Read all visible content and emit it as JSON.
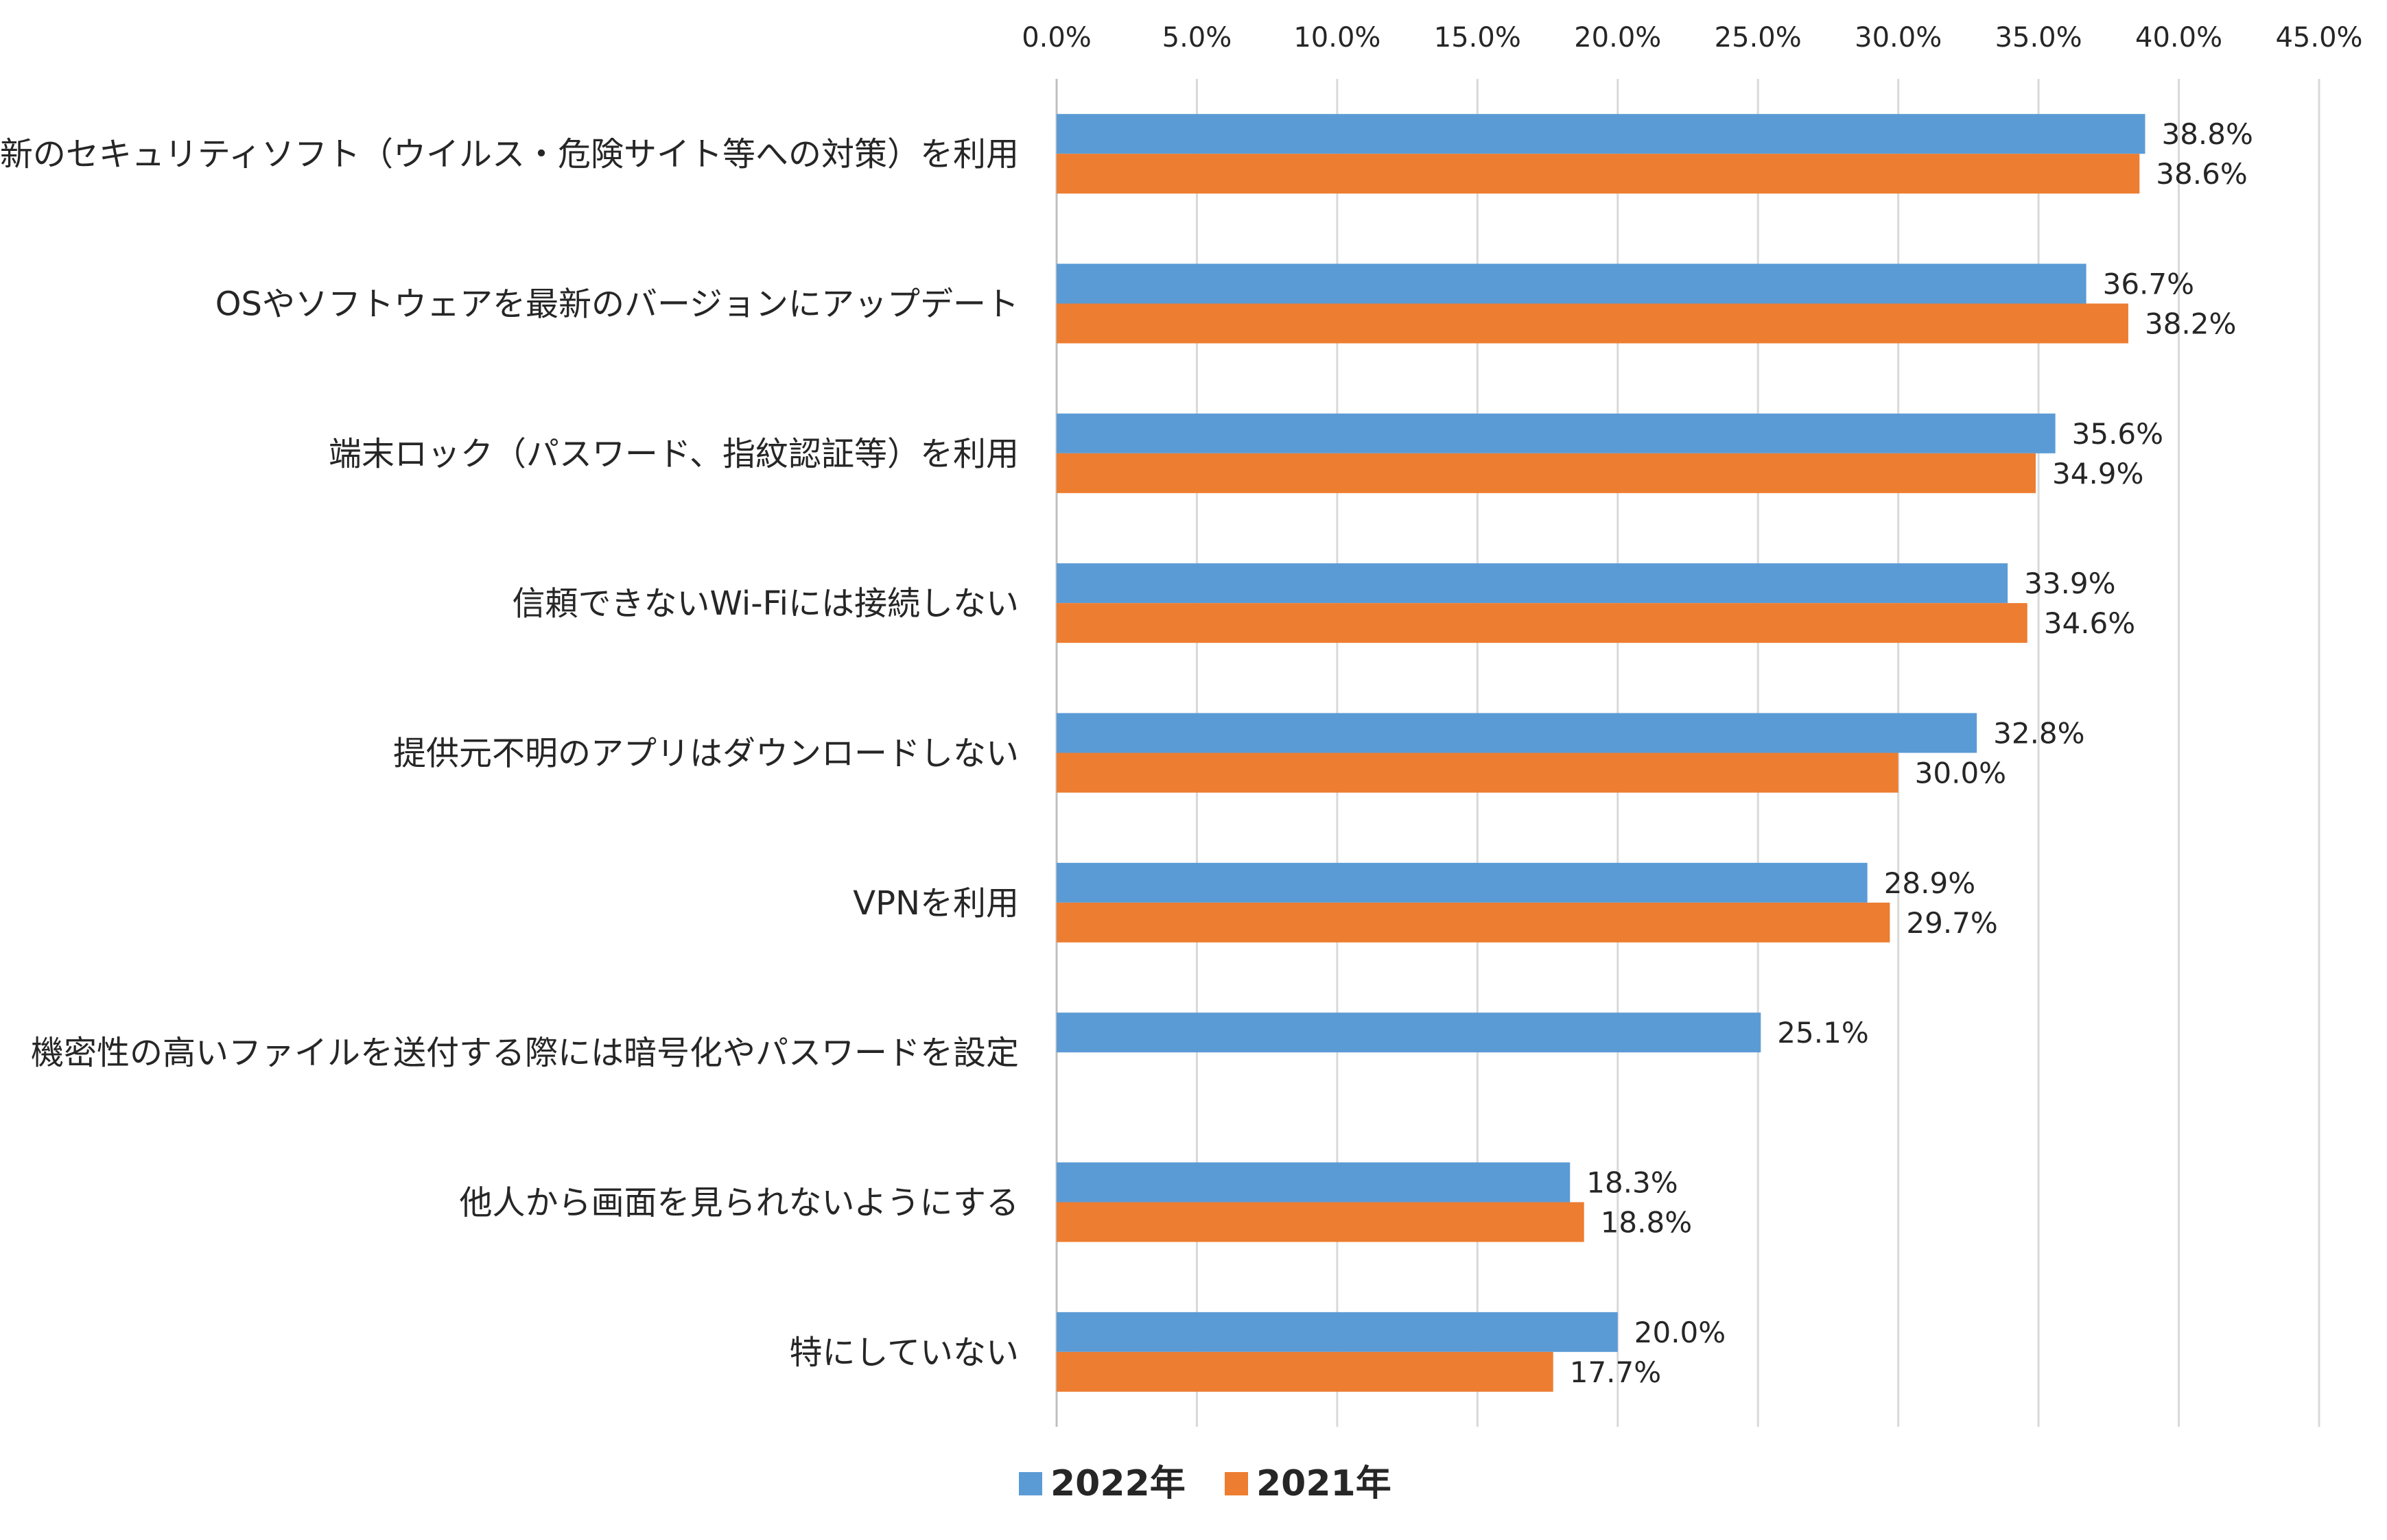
{
  "chart_data": {
    "type": "bar",
    "orientation": "horizontal",
    "categories": [
      "最新のセキュリティソフト（ウイルス・危険サイト等への対策）を利用",
      "OSやソフトウェアを最新のバージョンにアップデート",
      "端末ロック（パスワード、指紋認証等）を利用",
      "信頼できないWi-Fiには接続しない",
      "提供元不明のアプリはダウンロードしない",
      "VPNを利用",
      "機密性の高いファイルを送付する際には暗号化やパスワードを設定",
      "他人から画面を見られないようにする",
      "特にしていない"
    ],
    "series": [
      {
        "name": "2022年",
        "color": "#5b9bd5",
        "values": [
          38.8,
          36.7,
          35.6,
          33.9,
          32.8,
          28.9,
          25.1,
          18.3,
          20.0
        ],
        "labels": [
          "38.8%",
          "36.7%",
          "35.6%",
          "33.9%",
          "32.8%",
          "28.9%",
          "25.1%",
          "18.3%",
          "20.0%"
        ]
      },
      {
        "name": "2021年",
        "color": "#ed7d31",
        "values": [
          38.6,
          38.2,
          34.9,
          34.6,
          30.0,
          29.7,
          null,
          18.8,
          17.7
        ],
        "labels": [
          "38.6%",
          "38.2%",
          "34.9%",
          "34.6%",
          "30.0%",
          "29.7%",
          "",
          "18.8%",
          "17.7%"
        ]
      }
    ],
    "x_ticks": [
      "0.0%",
      "5.0%",
      "10.0%",
      "15.0%",
      "20.0%",
      "25.0%",
      "30.0%",
      "35.0%",
      "40.0%",
      "45.0%"
    ],
    "xlim": [
      0,
      45
    ],
    "x_tick_step": 5,
    "xaxis_position": "top",
    "grid": true,
    "legend_position": "bottom-center",
    "title": "",
    "xlabel": "",
    "ylabel": ""
  }
}
